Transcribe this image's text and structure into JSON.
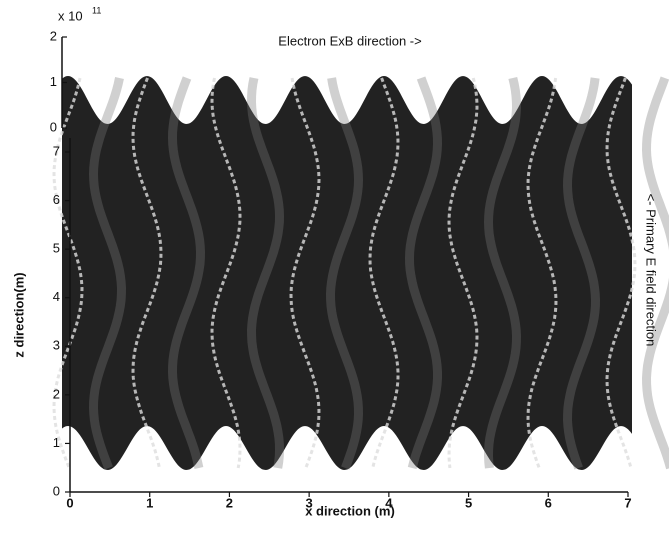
{
  "chart_data": {
    "type": "surface",
    "title": "Electron ExB direction ->",
    "xlabel": "x direction (m)",
    "ylabel": "z direction(m)",
    "right_label": "<- Primary E field direction",
    "value_scale_base": "x 10",
    "value_scale_exponent": "11",
    "xlim": [
      0,
      7
    ],
    "xticks": [
      0,
      1,
      2,
      3,
      4,
      5,
      6,
      7
    ],
    "ylim": [
      0,
      7
    ],
    "yticks": [
      0,
      1,
      2,
      3,
      4,
      5,
      6,
      7
    ],
    "zlim": [
      0,
      2
    ],
    "zticks": [
      0,
      1,
      2
    ],
    "color": "#222222"
  }
}
